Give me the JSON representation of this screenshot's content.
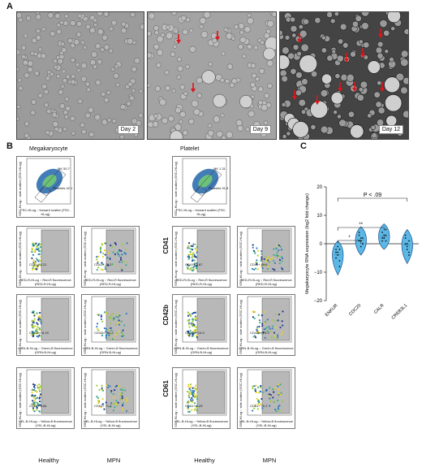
{
  "panels": {
    "a": {
      "letter": "A",
      "days": [
        "Day 2",
        "Day 9",
        "Day 12"
      ]
    },
    "b": {
      "letter": "B",
      "col_group_left": "Megakaryocyte",
      "col_group_right": "Platelet",
      "rows": [
        "CD41",
        "CD42b",
        "CD61"
      ],
      "columns": [
        "Healthy",
        "MPN",
        "Healthy",
        "MPN"
      ],
      "scatter_plots": [
        {
          "x_label": "FSC-HLog :: forward scatter (FSC-HLog)",
          "y_label": "SSC-HLog :: side scatter (SSC-HLog)",
          "gate1": "MK",
          "gate1_value": "50.7",
          "gate2": "Platelets",
          "gate2_value": "42.1"
        },
        {
          "x_label": "FSC-HLog :: forward scatter (FSC-HLog)",
          "y_label": "SSC-HLog :: side scatter (SSC-HLog)",
          "gate1": "MK",
          "gate1_value": "1.31",
          "gate2": "Platelets",
          "gate2_value": "91.8"
        }
      ],
      "marker_plots": [
        {
          "row": "CD41",
          "x_label": "RED-R-HLog :: Red-R fluorescence (RED-R-HLog)",
          "values": [
            "3.21",
            "38.2",
            "3.67",
            "89.6"
          ],
          "gate": "CD41+"
        },
        {
          "row": "CD42b",
          "x_label": "GRN-B-HLog :: Green-B fluorescence (GRN-B-HLog)",
          "values": [
            "8.19",
            "84.2",
            "14.0",
            "75.3"
          ],
          "gate": "CD42b+"
        },
        {
          "row": "CD61",
          "x_label": "YEL-B-HLog :: Yellow-B fluorescence (YEL-B-HLog)",
          "values": [
            "5.64",
            "71.3",
            "4.29",
            "70.1"
          ],
          "gate": "CD61+"
        }
      ],
      "y_label": "SSC-HLog :: side scatter (SSC-HLog)"
    },
    "c": {
      "letter": "C",
      "ylabel": "Megakaryocyte RNA expression (log2 fold change)",
      "yticks": [
        "20",
        "10",
        "0",
        "−10",
        "−20"
      ],
      "categories": [
        "ENKUR",
        "CDC20",
        "CALR",
        "CREB3L1"
      ],
      "sig_top": "P < .09",
      "sig_mid": "**",
      "sig_low": "*"
    }
  },
  "chart_data": {
    "type": "violin",
    "categories": [
      "ENKUR",
      "CDC20",
      "CALR",
      "CREB3L1"
    ],
    "series": [
      {
        "name": "ENKUR",
        "values": [
          -2,
          -4,
          -6,
          -3,
          -1,
          -8,
          -5,
          -3,
          -2
        ]
      },
      {
        "name": "CDC20",
        "values": [
          1,
          2,
          0,
          3,
          -1,
          2,
          4,
          1,
          0
        ]
      },
      {
        "name": "CALR",
        "values": [
          2,
          3,
          1,
          4,
          2,
          3,
          1,
          2,
          5
        ]
      },
      {
        "name": "CREB3L1",
        "values": [
          0,
          -2,
          1,
          3,
          -1,
          -3,
          2,
          0,
          -4
        ]
      }
    ],
    "ylabel": "Megakaryocyte RNA expression (log2 fold change)",
    "ylim": [
      -20,
      20
    ],
    "comparisons": [
      {
        "pair": [
          "ENKUR",
          "CDC20"
        ],
        "label": "*"
      },
      {
        "pair": [
          "ENKUR",
          "CALR"
        ],
        "label": "**"
      },
      {
        "pair": [
          "ENKUR",
          "CREB3L1"
        ],
        "label": "P < .09"
      }
    ]
  }
}
